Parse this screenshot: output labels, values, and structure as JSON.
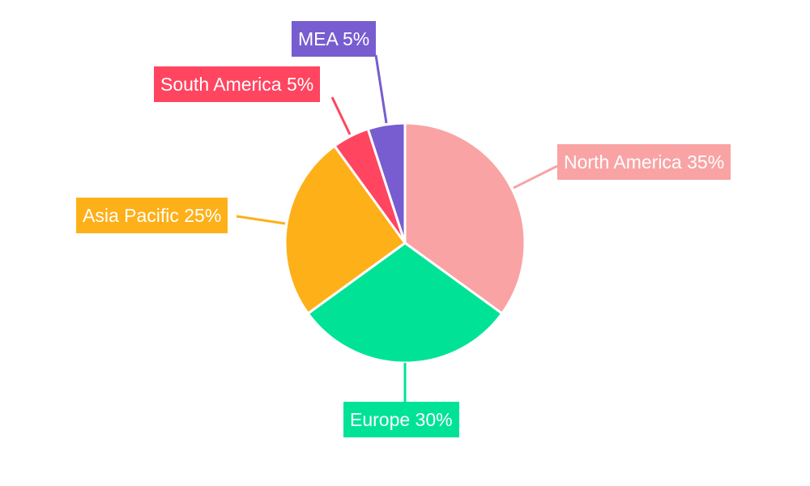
{
  "chart_data": {
    "type": "pie",
    "title": "",
    "legend": "none",
    "start_angle_deg": 0,
    "direction": "clockwise",
    "slices": [
      {
        "label": "North America",
        "value": 35,
        "text": "North America 35%",
        "color": "#F9A3A4"
      },
      {
        "label": "Europe",
        "value": 30,
        "text": "Europe 30%",
        "color": "#00E396"
      },
      {
        "label": "Asia Pacific",
        "value": 25,
        "text": "Asia Pacific 25%",
        "color": "#FEB019"
      },
      {
        "label": "South America",
        "value": 5,
        "text": "South America 5%",
        "color": "#FF4560"
      },
      {
        "label": "MEA",
        "value": 5,
        "text": "MEA 5%",
        "color": "#775DD0"
      }
    ]
  }
}
